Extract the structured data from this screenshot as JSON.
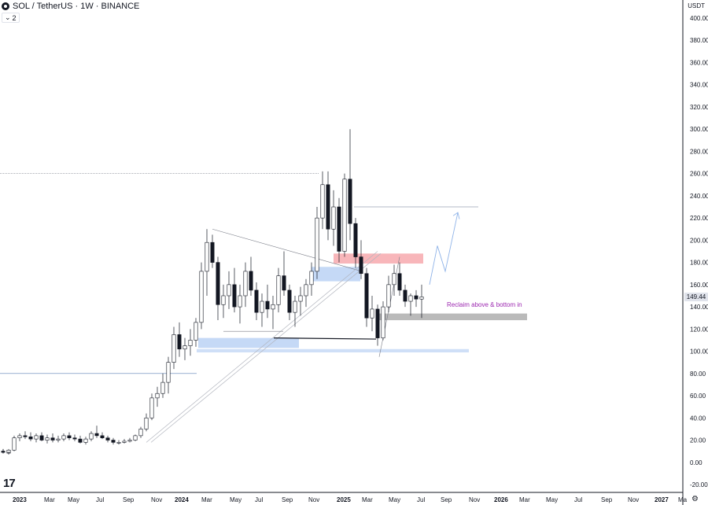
{
  "header": {
    "symbol_label": "SOL / TetherUS · 1W · BINANCE",
    "indicator_count": "2"
  },
  "price_axis": {
    "currency": "USDT",
    "last_price_label": "149.44"
  },
  "chart_data": {
    "type": "candlestick",
    "x": [
      "2023",
      "Mar",
      "May",
      "Jul",
      "Sep",
      "Nov",
      "2024",
      "Mar",
      "May",
      "Jul",
      "Sep",
      "Nov",
      "2025",
      "Mar",
      "May",
      "Jul",
      "Sep",
      "Nov",
      "2026",
      "Mar",
      "May",
      "Jul",
      "Sep",
      "Nov",
      "2027",
      "Ma"
    ],
    "y_ticks": [
      400,
      380,
      360,
      340,
      320,
      300,
      280,
      260,
      240,
      220,
      200,
      180,
      160,
      140,
      120,
      100,
      80,
      60,
      40,
      20,
      0,
      -20
    ],
    "ylim": [
      -25,
      410
    ],
    "colors": {
      "up": "#ffffff",
      "down": "#131722",
      "wick": "#131722",
      "grid": "#ffffff",
      "demand_zone": "#bbd2f4",
      "supply_zone": "#f7a9ae",
      "reclaim_zone": "#b2b2b2",
      "annotation": "#9c27b0"
    },
    "candles_sampled_weekly": [
      [
        0,
        10,
        12,
        8,
        10
      ],
      [
        0,
        10,
        12,
        8,
        9
      ],
      [
        1,
        9,
        11,
        7,
        9
      ],
      [
        1,
        9,
        12,
        8,
        11
      ],
      [
        2,
        11,
        24,
        10,
        22
      ],
      [
        3,
        22,
        26,
        19,
        24
      ],
      [
        4,
        24,
        28,
        21,
        23
      ],
      [
        5,
        23,
        27,
        19,
        21
      ],
      [
        6,
        21,
        26,
        18,
        24
      ],
      [
        7,
        24,
        27,
        19,
        20
      ],
      [
        8,
        20,
        25,
        17,
        22
      ],
      [
        9,
        22,
        26,
        18,
        20
      ],
      [
        10,
        20,
        24,
        18,
        21
      ],
      [
        11,
        21,
        26,
        19,
        24
      ],
      [
        12,
        24,
        27,
        20,
        22
      ],
      [
        13,
        22,
        25,
        19,
        21
      ],
      [
        14,
        21,
        24,
        17,
        18
      ],
      [
        15,
        18,
        23,
        16,
        21
      ],
      [
        16,
        21,
        28,
        19,
        26
      ],
      [
        17,
        26,
        33,
        22,
        24
      ],
      [
        18,
        24,
        27,
        21,
        22
      ],
      [
        19,
        22,
        24,
        18,
        20
      ],
      [
        20,
        20,
        22,
        16,
        18
      ],
      [
        21,
        18,
        20,
        16,
        18
      ],
      [
        22,
        18,
        21,
        17,
        19
      ],
      [
        23,
        19,
        22,
        18,
        20
      ],
      [
        24,
        20,
        25,
        19,
        24
      ],
      [
        25,
        24,
        32,
        22,
        30
      ],
      [
        26,
        30,
        44,
        28,
        40
      ],
      [
        27,
        40,
        62,
        38,
        58
      ],
      [
        28,
        58,
        68,
        50,
        62
      ],
      [
        29,
        62,
        80,
        58,
        72
      ],
      [
        30,
        72,
        95,
        62,
        90
      ],
      [
        31,
        90,
        122,
        84,
        115
      ],
      [
        32,
        115,
        126,
        95,
        102
      ],
      [
        33,
        102,
        112,
        92,
        105
      ],
      [
        34,
        105,
        120,
        96,
        110
      ],
      [
        35,
        110,
        130,
        104,
        126
      ],
      [
        36,
        126,
        180,
        120,
        172
      ],
      [
        37,
        172,
        210,
        150,
        198
      ],
      [
        38,
        198,
        205,
        175,
        180
      ],
      [
        39,
        180,
        185,
        128,
        142
      ],
      [
        40,
        142,
        160,
        130,
        150
      ],
      [
        41,
        150,
        172,
        138,
        160
      ],
      [
        42,
        160,
        175,
        135,
        140
      ],
      [
        43,
        140,
        160,
        125,
        150
      ],
      [
        44,
        150,
        180,
        140,
        172
      ],
      [
        45,
        172,
        185,
        150,
        155
      ],
      [
        46,
        155,
        162,
        128,
        135
      ],
      [
        47,
        135,
        152,
        122,
        145
      ],
      [
        48,
        145,
        160,
        130,
        138
      ],
      [
        49,
        138,
        150,
        120,
        142
      ],
      [
        50,
        142,
        175,
        135,
        168
      ],
      [
        51,
        168,
        190,
        150,
        155
      ],
      [
        52,
        155,
        160,
        128,
        135
      ],
      [
        53,
        135,
        150,
        122,
        145
      ],
      [
        54,
        145,
        158,
        132,
        150
      ],
      [
        55,
        150,
        165,
        140,
        160
      ],
      [
        56,
        160,
        180,
        150,
        172
      ],
      [
        57,
        172,
        230,
        165,
        220
      ],
      [
        58,
        220,
        262,
        210,
        250
      ],
      [
        59,
        250,
        262,
        200,
        210
      ],
      [
        60,
        210,
        245,
        195,
        230
      ],
      [
        61,
        230,
        238,
        180,
        190
      ],
      [
        62,
        190,
        260,
        185,
        255
      ],
      [
        63,
        255,
        300,
        200,
        215
      ],
      [
        64,
        215,
        220,
        175,
        185
      ],
      [
        65,
        185,
        200,
        165,
        170
      ],
      [
        66,
        170,
        175,
        122,
        130
      ],
      [
        67,
        130,
        150,
        118,
        138
      ],
      [
        68,
        138,
        142,
        105,
        112
      ],
      [
        69,
        112,
        145,
        110,
        140
      ],
      [
        70,
        140,
        168,
        135,
        160
      ],
      [
        71,
        160,
        178,
        150,
        170
      ],
      [
        72,
        170,
        180,
        150,
        155
      ],
      [
        73,
        155,
        160,
        140,
        145
      ],
      [
        74,
        145,
        152,
        132,
        150
      ],
      [
        75,
        150,
        155,
        140,
        147
      ],
      [
        76,
        147,
        160,
        130,
        149
      ]
    ],
    "annotations": [
      {
        "label": "Reclaim above & bottom in"
      }
    ],
    "levels": {
      "resistance_dotted": 260,
      "support_line": 80,
      "target": 230
    }
  }
}
